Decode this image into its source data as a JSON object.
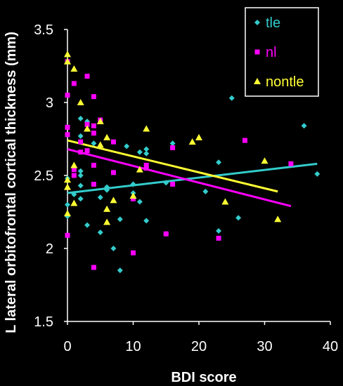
{
  "chart_data": {
    "type": "scatter",
    "xlabel": "BDI score",
    "ylabel": "L lateral orbitofrontal cortical  thickness (mm)",
    "xlim": [
      0,
      40
    ],
    "ylim": [
      1.5,
      3.5
    ],
    "x_ticks": [
      0,
      10,
      20,
      30,
      40
    ],
    "y_ticks": [
      1.5,
      2,
      2.5,
      3,
      3.5
    ],
    "x_tick_labels": [
      "0",
      "10",
      "20",
      "30",
      "40"
    ],
    "y_tick_labels": [
      "1.5",
      "2",
      "2.5",
      "3",
      "3.5"
    ],
    "grid": false,
    "legend_position": "top-right",
    "series": [
      {
        "name": "tle",
        "color": "#33cccc",
        "marker": "diamond",
        "points": [
          [
            0,
            2.48
          ],
          [
            0,
            2.22
          ],
          [
            0,
            2.3
          ],
          [
            1,
            2.37
          ],
          [
            2,
            2.43
          ],
          [
            2,
            2.5
          ],
          [
            2,
            2.53
          ],
          [
            2,
            2.89
          ],
          [
            2,
            2.77
          ],
          [
            2,
            2.34
          ],
          [
            3,
            2.16
          ],
          [
            3,
            2.87
          ],
          [
            4,
            2.72
          ],
          [
            5,
            2.11
          ],
          [
            5,
            2.35
          ],
          [
            6,
            2.42
          ],
          [
            6,
            2.4
          ],
          [
            7,
            2.0
          ],
          [
            8,
            1.85
          ],
          [
            8,
            2.2
          ],
          [
            9,
            2.7
          ],
          [
            10,
            2.38
          ],
          [
            10,
            2.44
          ],
          [
            11,
            2.66
          ],
          [
            11,
            2.32
          ],
          [
            12,
            2.65
          ],
          [
            12,
            2.68
          ],
          [
            12,
            2.19
          ],
          [
            15,
            2.1
          ],
          [
            15,
            2.45
          ],
          [
            16,
            2.72
          ],
          [
            21,
            2.39
          ],
          [
            23,
            2.12
          ],
          [
            23,
            2.59
          ],
          [
            25,
            3.03
          ],
          [
            26,
            2.21
          ],
          [
            36,
            2.84
          ],
          [
            38,
            2.51
          ]
        ],
        "trend": [
          [
            0,
            2.38
          ],
          [
            38,
            2.58
          ]
        ]
      },
      {
        "name": "nl",
        "color": "#ff00ff",
        "marker": "square",
        "points": [
          [
            0,
            2.78
          ],
          [
            0,
            2.83
          ],
          [
            0,
            3.05
          ],
          [
            0,
            2.09
          ],
          [
            0,
            3.28
          ],
          [
            1,
            2.5
          ],
          [
            1,
            2.54
          ],
          [
            1,
            3.13
          ],
          [
            2,
            2.73
          ],
          [
            2,
            2.66
          ],
          [
            3,
            2.67
          ],
          [
            3,
            2.85
          ],
          [
            3,
            3.18
          ],
          [
            4,
            2.44
          ],
          [
            4,
            2.57
          ],
          [
            4,
            2.79
          ],
          [
            4,
            2.84
          ],
          [
            4,
            3.04
          ],
          [
            4,
            1.87
          ],
          [
            5,
            2.88
          ],
          [
            7,
            2.52
          ],
          [
            7,
            2.73
          ],
          [
            10,
            2.34
          ],
          [
            10,
            1.97
          ],
          [
            12,
            2.55
          ],
          [
            12,
            2.57
          ],
          [
            15,
            2.1
          ],
          [
            16,
            2.69
          ],
          [
            16,
            2.44
          ],
          [
            23,
            2.07
          ],
          [
            27,
            2.74
          ],
          [
            34,
            2.58
          ]
        ],
        "trend": [
          [
            0,
            2.68
          ],
          [
            34,
            2.29
          ]
        ]
      },
      {
        "name": "nontle",
        "color": "#ffff33",
        "marker": "triangle",
        "points": [
          [
            0,
            3.33
          ],
          [
            0,
            3.28
          ],
          [
            0,
            2.24
          ],
          [
            0,
            2.42
          ],
          [
            0,
            2.47
          ],
          [
            1,
            3.23
          ],
          [
            1,
            2.31
          ],
          [
            1,
            2.57
          ],
          [
            2,
            3.0
          ],
          [
            3,
            2.82
          ],
          [
            5,
            2.87
          ],
          [
            5,
            2.71
          ],
          [
            6,
            2.76
          ],
          [
            6,
            2.18
          ],
          [
            6,
            2.27
          ],
          [
            7,
            2.33
          ],
          [
            10,
            2.36
          ],
          [
            11,
            2.54
          ],
          [
            12,
            2.82
          ],
          [
            19,
            2.73
          ],
          [
            20,
            2.76
          ],
          [
            24,
            2.32
          ],
          [
            30,
            2.6
          ],
          [
            32,
            2.2
          ]
        ],
        "trend": [
          [
            0,
            2.74
          ],
          [
            32,
            2.39
          ]
        ]
      }
    ]
  }
}
